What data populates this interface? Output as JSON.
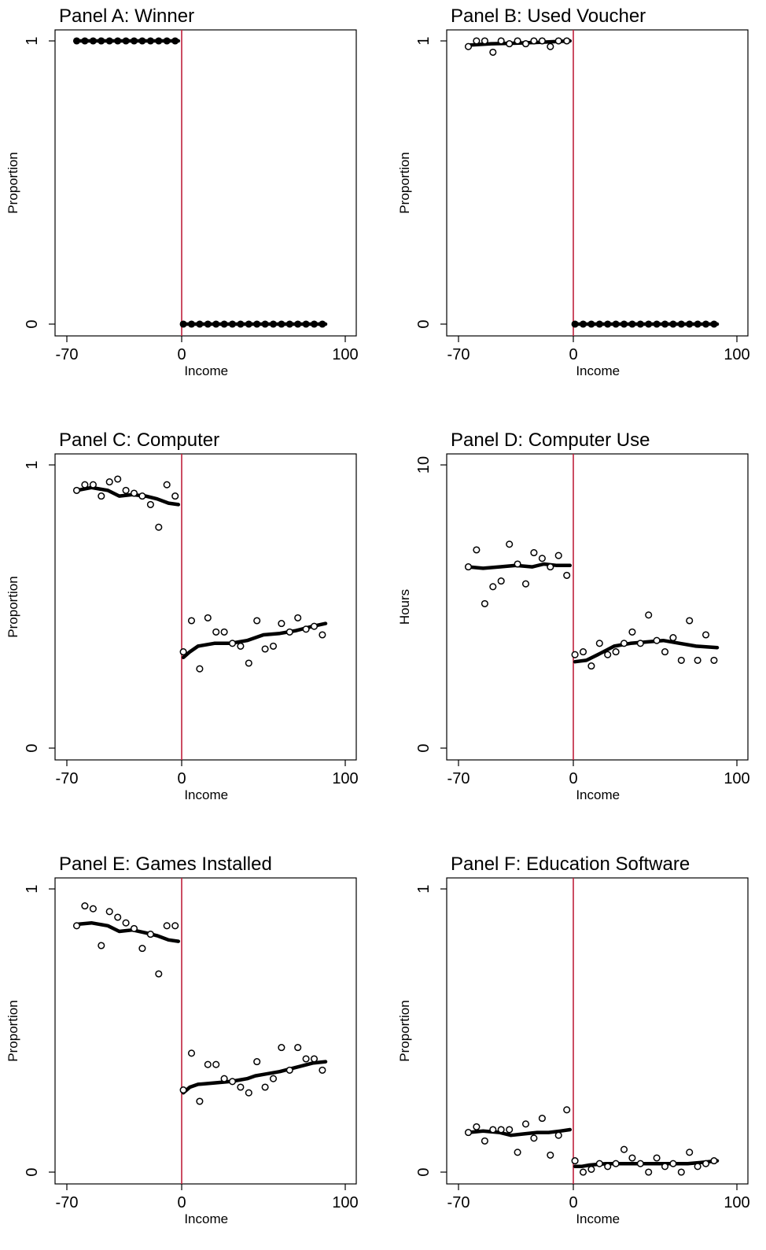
{
  "colors": {
    "cutoff": "#c0203c",
    "marker": "#000000",
    "fit": "#000000"
  },
  "chart_data": [
    {
      "type": "scatter",
      "title": "Panel A: Winner",
      "xlabel": "Income",
      "ylabel": "Proportion",
      "xlim": [
        -70,
        100
      ],
      "ylim": [
        0,
        1
      ],
      "xticks": [
        "-70",
        "0",
        "100"
      ],
      "yticks": [
        "0",
        "1"
      ],
      "cutoff": 0,
      "markers": "filled",
      "points_x": [
        -64,
        -59,
        -54,
        -49,
        -44,
        -39,
        -34,
        -29,
        -24,
        -19,
        -14,
        -9,
        -4,
        1,
        6,
        11,
        16,
        21,
        26,
        31,
        36,
        41,
        46,
        51,
        56,
        61,
        66,
        71,
        76,
        81,
        86
      ],
      "points_y": [
        1,
        1,
        1,
        1,
        1,
        1,
        1,
        1,
        1,
        1,
        1,
        1,
        1,
        0,
        0,
        0,
        0,
        0,
        0,
        0,
        0,
        0,
        0,
        0,
        0,
        0,
        0,
        0,
        0,
        0,
        0
      ],
      "fit_left_x": [
        -64,
        -2
      ],
      "fit_left_y": [
        1,
        1
      ],
      "fit_right_x": [
        1,
        88
      ],
      "fit_right_y": [
        0,
        0
      ]
    },
    {
      "type": "scatter",
      "title": "Panel B: Used Voucher",
      "xlabel": "Income",
      "ylabel": "Proportion",
      "xlim": [
        -70,
        100
      ],
      "ylim": [
        0,
        1
      ],
      "xticks": [
        "-70",
        "0",
        "100"
      ],
      "yticks": [
        "0",
        "1"
      ],
      "cutoff": 0,
      "markers": "mixed",
      "points_x": [
        -64,
        -59,
        -54,
        -49,
        -44,
        -39,
        -34,
        -29,
        -24,
        -19,
        -14,
        -9,
        -4,
        1,
        6,
        11,
        16,
        21,
        26,
        31,
        36,
        41,
        46,
        51,
        56,
        61,
        66,
        71,
        76,
        81,
        86
      ],
      "points_y": [
        0.98,
        1.0,
        1.0,
        0.96,
        1.0,
        0.99,
        1.0,
        0.99,
        1.0,
        1.0,
        0.98,
        1.0,
        1.0,
        0,
        0,
        0,
        0,
        0,
        0,
        0,
        0,
        0,
        0,
        0,
        0,
        0,
        0,
        0,
        0,
        0,
        0
      ],
      "fit_left_x": [
        -64,
        -50,
        -35,
        -20,
        -2
      ],
      "fit_left_y": [
        0.985,
        0.99,
        0.992,
        0.995,
        1.0
      ],
      "fit_right_x": [
        1,
        88
      ],
      "fit_right_y": [
        0,
        0
      ]
    },
    {
      "type": "scatter",
      "title": "Panel C: Computer",
      "xlabel": "Income",
      "ylabel": "Proportion",
      "xlim": [
        -70,
        100
      ],
      "ylim": [
        0,
        1
      ],
      "xticks": [
        "-70",
        "0",
        "100"
      ],
      "yticks": [
        "0",
        "1"
      ],
      "cutoff": 0,
      "markers": "hollow",
      "points_x": [
        -64,
        -59,
        -54,
        -49,
        -44,
        -39,
        -34,
        -29,
        -24,
        -19,
        -14,
        -9,
        -4,
        1,
        6,
        11,
        16,
        21,
        26,
        31,
        36,
        41,
        46,
        51,
        56,
        61,
        66,
        71,
        76,
        81,
        86
      ],
      "points_y": [
        0.91,
        0.93,
        0.93,
        0.89,
        0.94,
        0.95,
        0.91,
        0.9,
        0.89,
        0.86,
        0.78,
        0.93,
        0.89,
        0.34,
        0.45,
        0.28,
        0.46,
        0.41,
        0.41,
        0.37,
        0.36,
        0.3,
        0.45,
        0.35,
        0.36,
        0.44,
        0.41,
        0.46,
        0.42,
        0.43,
        0.4
      ],
      "fit_left_x": [
        -64,
        -55,
        -45,
        -38,
        -30,
        -22,
        -15,
        -8,
        -2
      ],
      "fit_left_y": [
        0.91,
        0.92,
        0.91,
        0.89,
        0.895,
        0.89,
        0.88,
        0.865,
        0.86
      ],
      "fit_right_x": [
        1,
        5,
        10,
        20,
        30,
        35,
        40,
        45,
        50,
        60,
        70,
        80,
        88
      ],
      "fit_right_y": [
        0.32,
        0.34,
        0.36,
        0.37,
        0.37,
        0.375,
        0.38,
        0.39,
        0.4,
        0.405,
        0.415,
        0.43,
        0.44
      ]
    },
    {
      "type": "scatter",
      "title": "Panel D: Computer Use",
      "xlabel": "Income",
      "ylabel": "Hours",
      "xlim": [
        -70,
        100
      ],
      "ylim": [
        0,
        10
      ],
      "xticks": [
        "-70",
        "0",
        "100"
      ],
      "yticks": [
        "0",
        "10"
      ],
      "cutoff": 0,
      "markers": "hollow",
      "points_x": [
        -64,
        -59,
        -54,
        -49,
        -44,
        -39,
        -34,
        -29,
        -24,
        -19,
        -14,
        -9,
        -4,
        1,
        6,
        11,
        16,
        21,
        26,
        31,
        36,
        41,
        46,
        51,
        56,
        61,
        66,
        71,
        76,
        81,
        86
      ],
      "points_y": [
        6.4,
        7.0,
        5.1,
        5.7,
        5.9,
        7.2,
        6.5,
        5.8,
        6.9,
        6.7,
        6.4,
        6.8,
        6.1,
        3.3,
        3.4,
        2.9,
        3.7,
        3.3,
        3.4,
        3.7,
        4.1,
        3.7,
        4.7,
        3.8,
        3.4,
        3.9,
        3.1,
        4.5,
        3.1,
        4.0,
        3.1
      ],
      "fit_left_x": [
        -64,
        -55,
        -45,
        -35,
        -25,
        -18,
        -10,
        -2
      ],
      "fit_left_y": [
        6.4,
        6.35,
        6.4,
        6.45,
        6.4,
        6.5,
        6.45,
        6.45
      ],
      "fit_right_x": [
        1,
        8,
        15,
        25,
        35,
        45,
        55,
        65,
        75,
        88
      ],
      "fit_right_y": [
        3.05,
        3.1,
        3.3,
        3.6,
        3.7,
        3.75,
        3.8,
        3.7,
        3.6,
        3.55
      ]
    },
    {
      "type": "scatter",
      "title": "Panel E: Games Installed",
      "xlabel": "Income",
      "ylabel": "Proportion",
      "xlim": [
        -70,
        100
      ],
      "ylim": [
        0,
        1
      ],
      "xticks": [
        "-70",
        "0",
        "100"
      ],
      "yticks": [
        "0",
        "1"
      ],
      "cutoff": 0,
      "markers": "hollow",
      "points_x": [
        -64,
        -59,
        -54,
        -49,
        -44,
        -39,
        -34,
        -29,
        -24,
        -19,
        -14,
        -9,
        -4,
        1,
        6,
        11,
        16,
        21,
        26,
        31,
        36,
        41,
        46,
        51,
        56,
        61,
        66,
        71,
        76,
        81,
        86
      ],
      "points_y": [
        0.87,
        0.94,
        0.93,
        0.8,
        0.92,
        0.9,
        0.88,
        0.86,
        0.79,
        0.84,
        0.7,
        0.87,
        0.87,
        0.29,
        0.42,
        0.25,
        0.38,
        0.38,
        0.33,
        0.32,
        0.3,
        0.28,
        0.39,
        0.3,
        0.33,
        0.44,
        0.36,
        0.44,
        0.4,
        0.4,
        0.36
      ],
      "fit_left_x": [
        -64,
        -55,
        -45,
        -38,
        -30,
        -22,
        -15,
        -8,
        -2
      ],
      "fit_left_y": [
        0.875,
        0.88,
        0.87,
        0.85,
        0.855,
        0.845,
        0.835,
        0.82,
        0.815
      ],
      "fit_right_x": [
        1,
        5,
        10,
        20,
        30,
        35,
        40,
        45,
        50,
        60,
        70,
        80,
        88
      ],
      "fit_right_y": [
        0.28,
        0.3,
        0.31,
        0.315,
        0.32,
        0.325,
        0.33,
        0.34,
        0.345,
        0.355,
        0.37,
        0.385,
        0.39
      ]
    },
    {
      "type": "scatter",
      "title": "Panel F: Education Software",
      "xlabel": "Income",
      "ylabel": "Proportion",
      "xlim": [
        -70,
        100
      ],
      "ylim": [
        0,
        1
      ],
      "xticks": [
        "-70",
        "0",
        "100"
      ],
      "yticks": [
        "0",
        "1"
      ],
      "cutoff": 0,
      "markers": "hollow",
      "points_x": [
        -64,
        -59,
        -54,
        -49,
        -44,
        -39,
        -34,
        -29,
        -24,
        -19,
        -14,
        -9,
        -4,
        1,
        6,
        11,
        16,
        21,
        26,
        31,
        36,
        41,
        46,
        51,
        56,
        61,
        66,
        71,
        76,
        81,
        86
      ],
      "points_y": [
        0.14,
        0.16,
        0.11,
        0.15,
        0.15,
        0.15,
        0.07,
        0.17,
        0.12,
        0.19,
        0.06,
        0.13,
        0.22,
        0.04,
        0.0,
        0.01,
        0.03,
        0.02,
        0.03,
        0.08,
        0.05,
        0.03,
        0.0,
        0.05,
        0.02,
        0.03,
        0.0,
        0.07,
        0.02,
        0.03,
        0.04
      ],
      "fit_left_x": [
        -64,
        -55,
        -45,
        -38,
        -30,
        -22,
        -15,
        -8,
        -2
      ],
      "fit_left_y": [
        0.14,
        0.145,
        0.14,
        0.13,
        0.135,
        0.14,
        0.14,
        0.145,
        0.15
      ],
      "fit_right_x": [
        1,
        5,
        10,
        20,
        30,
        40,
        50,
        60,
        70,
        80,
        88
      ],
      "fit_right_y": [
        0.02,
        0.02,
        0.025,
        0.03,
        0.03,
        0.03,
        0.03,
        0.03,
        0.03,
        0.035,
        0.04
      ]
    }
  ]
}
